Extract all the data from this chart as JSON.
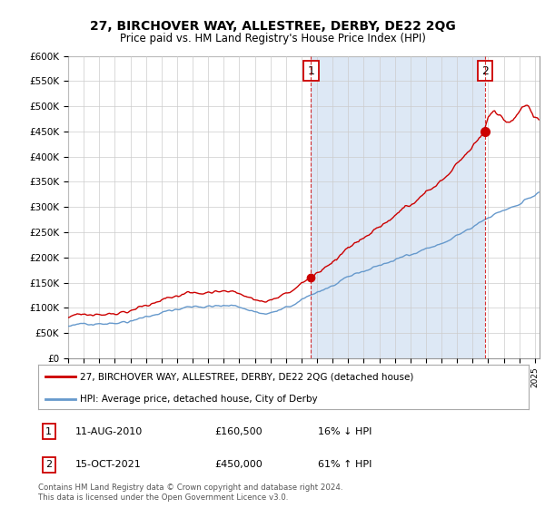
{
  "title": "27, BIRCHOVER WAY, ALLESTREE, DERBY, DE22 2QG",
  "subtitle": "Price paid vs. HM Land Registry's House Price Index (HPI)",
  "ylim": [
    0,
    600000
  ],
  "yticks": [
    0,
    50000,
    100000,
    150000,
    200000,
    250000,
    300000,
    350000,
    400000,
    450000,
    500000,
    550000,
    600000
  ],
  "ytick_labels": [
    "£0",
    "£50K",
    "£100K",
    "£150K",
    "£200K",
    "£250K",
    "£300K",
    "£350K",
    "£400K",
    "£450K",
    "£500K",
    "£550K",
    "£600K"
  ],
  "xlim_start": 1995.0,
  "xlim_end": 2025.3,
  "hpi_color": "#6699cc",
  "price_color": "#cc0000",
  "shade_color": "#dde8f5",
  "marker1_year": 2010.6,
  "marker1_price": 160500,
  "marker2_year": 2021.79,
  "marker2_price": 450000,
  "legend_line1": "27, BIRCHOVER WAY, ALLESTREE, DERBY, DE22 2QG (detached house)",
  "legend_line2": "HPI: Average price, detached house, City of Derby",
  "table_row1_num": "1",
  "table_row1_date": "11-AUG-2010",
  "table_row1_price": "£160,500",
  "table_row1_hpi": "16% ↓ HPI",
  "table_row2_num": "2",
  "table_row2_date": "15-OCT-2021",
  "table_row2_price": "£450,000",
  "table_row2_hpi": "61% ↑ HPI",
  "footer": "Contains HM Land Registry data © Crown copyright and database right 2024.\nThis data is licensed under the Open Government Licence v3.0.",
  "bg_color": "#ffffff",
  "grid_color": "#cccccc"
}
